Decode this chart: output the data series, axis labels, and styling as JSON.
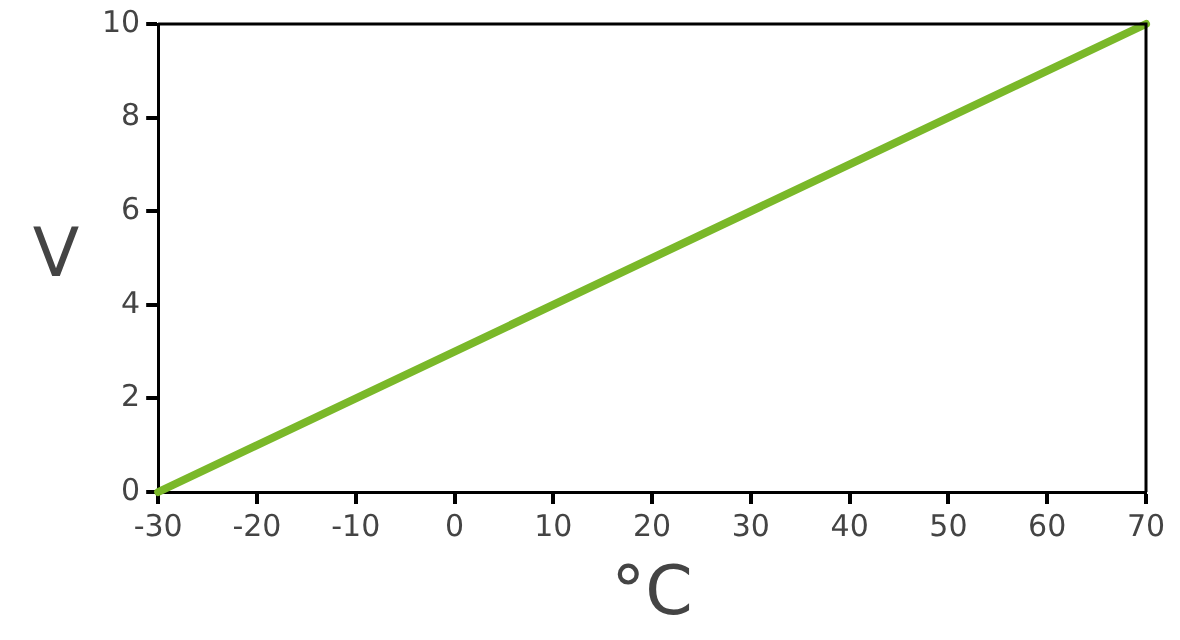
{
  "chart_data": {
    "type": "line",
    "xlabel": "°C",
    "ylabel": "V",
    "series": [
      {
        "color": "#7ab829",
        "x": [
          -30,
          70
        ],
        "values": [
          0,
          10
        ]
      }
    ],
    "xlim": [
      -30,
      70
    ],
    "xticks": [
      -30,
      -20,
      -10,
      0,
      10,
      20,
      30,
      40,
      50,
      60,
      70
    ],
    "ylim": [
      0,
      10
    ],
    "yticks": [
      0,
      2,
      4,
      6,
      8,
      10
    ],
    "grid": false,
    "legend": false,
    "marker": "none",
    "line_style": "solid"
  }
}
